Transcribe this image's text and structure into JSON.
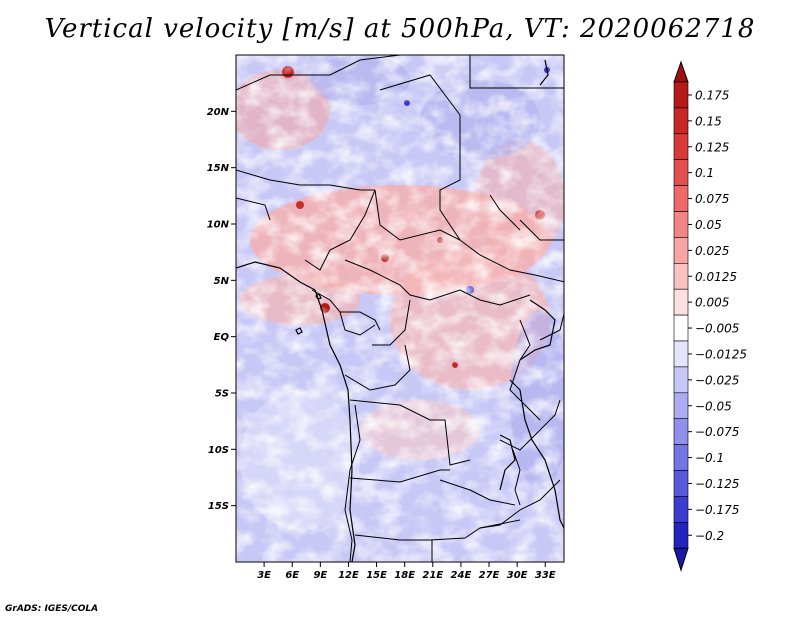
{
  "title": "Vertical velocity [m/s] at 500hPa, VT: 2020062718",
  "footer": "GrADS: IGES/COLA",
  "map": {
    "lon_range": [
      0,
      35
    ],
    "lat_range": [
      -20,
      25
    ],
    "lat_ticks": [
      {
        "value": 20,
        "label": "20N"
      },
      {
        "value": 15,
        "label": "15N"
      },
      {
        "value": 10,
        "label": "10N"
      },
      {
        "value": 5,
        "label": "5N"
      },
      {
        "value": 0,
        "label": "EQ"
      },
      {
        "value": -5,
        "label": "5S"
      },
      {
        "value": -10,
        "label": "10S"
      },
      {
        "value": -15,
        "label": "15S"
      }
    ],
    "lon_ticks": [
      {
        "value": 3,
        "label": "3E"
      },
      {
        "value": 6,
        "label": "6E"
      },
      {
        "value": 9,
        "label": "9E"
      },
      {
        "value": 12,
        "label": "12E"
      },
      {
        "value": 15,
        "label": "15E"
      },
      {
        "value": 18,
        "label": "18E"
      },
      {
        "value": 21,
        "label": "21E"
      },
      {
        "value": 24,
        "label": "24E"
      },
      {
        "value": 27,
        "label": "27E"
      },
      {
        "value": 30,
        "label": "30E"
      },
      {
        "value": 33,
        "label": "33E"
      }
    ]
  },
  "colorbar": {
    "levels": [
      {
        "label": "0.175",
        "color": "#b51a1a"
      },
      {
        "label": "0.15",
        "color": "#c82828"
      },
      {
        "label": "0.125",
        "color": "#d83a3a"
      },
      {
        "label": "0.1",
        "color": "#e45050"
      },
      {
        "label": "0.075",
        "color": "#ec6a6a"
      },
      {
        "label": "0.05",
        "color": "#f28686"
      },
      {
        "label": "0.025",
        "color": "#f6a4a4"
      },
      {
        "label": "0.0125",
        "color": "#fac2c2"
      },
      {
        "label": "0.005",
        "color": "#fde0e0"
      },
      {
        "label": "−0.005",
        "color": "#ffffff"
      },
      {
        "label": "−0.0125",
        "color": "#e4e4fc"
      },
      {
        "label": "−0.025",
        "color": "#c8c8f8"
      },
      {
        "label": "−0.05",
        "color": "#acacf2"
      },
      {
        "label": "−0.075",
        "color": "#9090ec"
      },
      {
        "label": "−0.1",
        "color": "#7474e4"
      },
      {
        "label": "−0.125",
        "color": "#5858da"
      },
      {
        "label": "−0.175",
        "color": "#3c3cce"
      },
      {
        "label": "−0.2",
        "color": "#2424c0"
      }
    ],
    "top_arrow_color": "#a01010",
    "bottom_arrow_color": "#1a1aa8",
    "middle_color": "#fde0e0"
  }
}
